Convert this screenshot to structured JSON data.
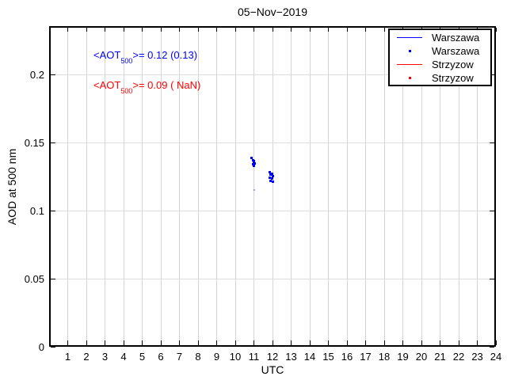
{
  "window": {
    "title": "05−Nov−2019"
  },
  "chart_data": {
    "type": "scatter",
    "title": "05−Nov−2019",
    "xlabel": "UTC",
    "ylabel": "AOD at 500 nm",
    "xlim": [
      0,
      24
    ],
    "ylim": [
      0,
      0.2355
    ],
    "xticks": [
      1,
      2,
      3,
      4,
      5,
      6,
      7,
      8,
      9,
      10,
      11,
      12,
      13,
      14,
      15,
      16,
      17,
      18,
      19,
      20,
      21,
      22,
      23,
      24
    ],
    "yticks": [
      0,
      0.05,
      0.1,
      0.15,
      0.2
    ],
    "ytick_labels": [
      "0",
      "0.05",
      "0.1",
      "0.15",
      "0.2"
    ],
    "grid": true,
    "legend_position": "top-right",
    "series": [
      {
        "name": "Warszawa",
        "color": "#0000ff",
        "marker": "point",
        "points": [
          [
            10.89,
            0.1384
          ],
          [
            10.94,
            0.1372
          ],
          [
            11.02,
            0.1366
          ],
          [
            10.98,
            0.1355
          ],
          [
            11.06,
            0.1349
          ],
          [
            10.94,
            0.1343
          ],
          [
            10.98,
            0.1331
          ],
          [
            11.87,
            0.1285
          ],
          [
            11.96,
            0.1273
          ],
          [
            11.91,
            0.1262
          ],
          [
            12.0,
            0.1256
          ],
          [
            11.87,
            0.1244
          ],
          [
            11.96,
            0.1233
          ],
          [
            11.91,
            0.1221
          ],
          [
            12.0,
            0.1215
          ]
        ],
        "faint_points": [
          [
            11.02,
            0.1151
          ]
        ]
      },
      {
        "name": "Strzyzow",
        "color": "#ff0000",
        "marker": "point",
        "points": [],
        "faint_points": []
      }
    ],
    "annotations": [
      {
        "text_pre": "<AOT",
        "text_sub": "500",
        "text_post": ">= 0.12 (0.13)",
        "color": "#0000ff",
        "mean": "0.12",
        "std": "0.13"
      },
      {
        "text_pre": "<AOT",
        "text_sub": "500",
        "text_post": ">= 0.09 ( NaN)",
        "color": "#ff0000",
        "mean": "0.09",
        "std": "NaN"
      }
    ]
  },
  "legend": {
    "items": [
      {
        "label": "Warszawa",
        "type": "line",
        "color": "#0000ff"
      },
      {
        "label": "Warszawa",
        "type": "dot",
        "color": "#0000ff"
      },
      {
        "label": "Strzyzow",
        "type": "line",
        "color": "#ff0000"
      },
      {
        "label": "Strzyzow",
        "type": "dot",
        "color": "#ff0000"
      }
    ]
  },
  "colors": {
    "warszawa": "#0000ff",
    "strzyzow": "#ff0000",
    "grid": "#d4d4d4",
    "axis": "#000000",
    "background": "#ffffff"
  }
}
